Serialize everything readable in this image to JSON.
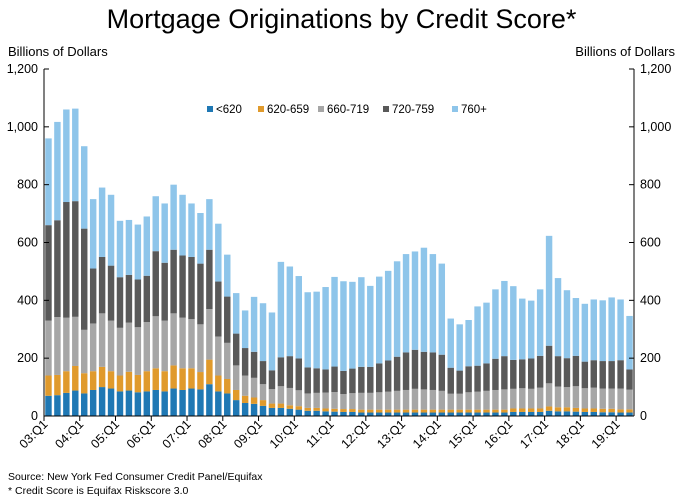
{
  "title": "Mortgage Originations by Credit Score*",
  "ylabel_left": "Billions of Dollars",
  "ylabel_right": "Billions of Dollars",
  "notes": {
    "source": "Source: New York Fed Consumer Credit Panel/Equifax",
    "footnote": "* Credit Score is Equifax Riskscore 3.0"
  },
  "colors": {
    "<620": "#1f78b4",
    "620-659": "#e09a2c",
    "660-719": "#a6a6a6",
    "720-759": "#595959",
    "760+": "#8ec5ea"
  },
  "chart_data": {
    "type": "bar",
    "stacked": true,
    "ylim": [
      0,
      1200
    ],
    "yticks": [
      "0",
      "200",
      "400",
      "600",
      "800",
      "1,000",
      "1,200"
    ],
    "ytick_values": [
      0,
      200,
      400,
      600,
      800,
      1000,
      1200
    ],
    "legend_position": "top",
    "grid": false,
    "categories": [
      "03:Q1",
      "03:Q2",
      "03:Q3",
      "03:Q4",
      "04:Q1",
      "04:Q2",
      "04:Q3",
      "04:Q4",
      "05:Q1",
      "05:Q2",
      "05:Q3",
      "05:Q4",
      "06:Q1",
      "06:Q2",
      "06:Q3",
      "06:Q4",
      "07:Q1",
      "07:Q2",
      "07:Q3",
      "07:Q4",
      "08:Q1",
      "08:Q2",
      "08:Q3",
      "08:Q4",
      "09:Q1",
      "09:Q2",
      "09:Q3",
      "09:Q4",
      "10:Q1",
      "10:Q2",
      "10:Q3",
      "10:Q4",
      "11:Q1",
      "11:Q2",
      "11:Q3",
      "11:Q4",
      "12:Q1",
      "12:Q2",
      "12:Q3",
      "12:Q4",
      "13:Q1",
      "13:Q2",
      "13:Q3",
      "13:Q4",
      "14:Q1",
      "14:Q2",
      "14:Q3",
      "14:Q4",
      "15:Q1",
      "15:Q2",
      "15:Q3",
      "15:Q4",
      "16:Q1",
      "16:Q2",
      "16:Q3",
      "16:Q4",
      "17:Q1",
      "17:Q2",
      "17:Q3",
      "17:Q4",
      "18:Q1",
      "18:Q2",
      "18:Q3",
      "18:Q4",
      "19:Q1",
      "19:Q2"
    ],
    "xtick_labels": [
      "03:Q1",
      "04:Q1",
      "05:Q1",
      "06:Q1",
      "07:Q1",
      "08:Q1",
      "09:Q1",
      "10:Q1",
      "11:Q1",
      "12:Q1",
      "13:Q1",
      "14:Q1",
      "15:Q1",
      "16:Q1",
      "17:Q1",
      "18:Q1",
      "19:Q1"
    ],
    "series": [
      {
        "name": "<620",
        "values": [
          70,
          72,
          80,
          88,
          78,
          90,
          100,
          95,
          85,
          88,
          82,
          85,
          90,
          85,
          95,
          90,
          95,
          92,
          110,
          85,
          78,
          55,
          45,
          42,
          35,
          28,
          28,
          25,
          22,
          18,
          18,
          16,
          15,
          14,
          14,
          12,
          12,
          12,
          12,
          12,
          12,
          12,
          12,
          12,
          12,
          12,
          12,
          12,
          12,
          12,
          12,
          12,
          14,
          14,
          14,
          14,
          18,
          16,
          16,
          15,
          14,
          14,
          13,
          13,
          12,
          12
        ]
      },
      {
        "name": "620-659",
        "values": [
          70,
          70,
          75,
          85,
          70,
          65,
          70,
          60,
          55,
          65,
          60,
          70,
          75,
          70,
          80,
          75,
          70,
          60,
          85,
          55,
          50,
          35,
          25,
          22,
          20,
          15,
          15,
          12,
          12,
          10,
          10,
          10,
          10,
          10,
          10,
          10,
          10,
          10,
          10,
          10,
          10,
          10,
          10,
          10,
          10,
          10,
          10,
          10,
          10,
          10,
          10,
          10,
          12,
          12,
          12,
          12,
          15,
          14,
          14,
          13,
          12,
          12,
          12,
          12,
          11,
          11
        ]
      },
      {
        "name": "660-719",
        "values": [
          190,
          200,
          185,
          170,
          150,
          165,
          185,
          175,
          165,
          170,
          165,
          170,
          180,
          175,
          180,
          175,
          170,
          165,
          175,
          135,
          125,
          85,
          70,
          68,
          55,
          50,
          60,
          60,
          55,
          50,
          52,
          55,
          58,
          52,
          55,
          58,
          58,
          60,
          62,
          65,
          68,
          72,
          70,
          68,
          65,
          55,
          55,
          60,
          62,
          65,
          68,
          70,
          68,
          70,
          68,
          72,
          80,
          72,
          70,
          75,
          70,
          72,
          70,
          70,
          72,
          68
        ]
      },
      {
        "name": "720-759",
        "values": [
          330,
          335,
          400,
          400,
          350,
          190,
          195,
          190,
          175,
          165,
          165,
          160,
          225,
          200,
          220,
          215,
          215,
          210,
          205,
          190,
          160,
          110,
          95,
          90,
          80,
          65,
          100,
          110,
          110,
          90,
          85,
          80,
          88,
          80,
          85,
          90,
          90,
          100,
          108,
          118,
          130,
          135,
          130,
          130,
          125,
          90,
          80,
          90,
          90,
          95,
          108,
          115,
          100,
          100,
          105,
          110,
          130,
          105,
          100,
          105,
          92,
          95,
          95,
          95,
          98,
          70
        ]
      },
      {
        "name": "760+",
        "values": [
          300,
          340,
          320,
          320,
          285,
          240,
          240,
          245,
          195,
          190,
          190,
          205,
          190,
          205,
          225,
          210,
          185,
          175,
          175,
          200,
          145,
          140,
          130,
          190,
          200,
          200,
          330,
          310,
          285,
          260,
          265,
          285,
          310,
          310,
          300,
          310,
          280,
          300,
          310,
          330,
          340,
          340,
          360,
          340,
          315,
          170,
          160,
          160,
          205,
          210,
          240,
          260,
          255,
          210,
          200,
          230,
          380,
          270,
          235,
          200,
          200,
          210,
          210,
          220,
          210,
          185
        ]
      }
    ]
  }
}
